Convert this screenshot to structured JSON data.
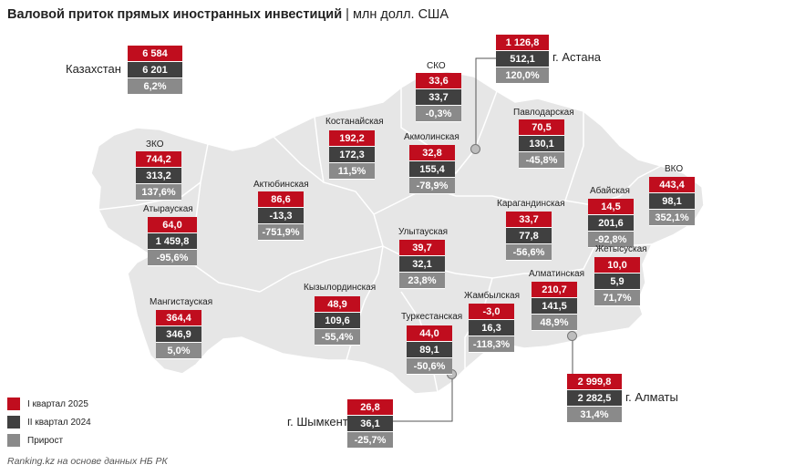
{
  "title": {
    "main": "Валовой приток прямых иностранных инвестиций",
    "sep": " | ",
    "unit": "млн долл. США"
  },
  "colors": {
    "q1_2025": "#c00d1e",
    "q2_2024": "#404040",
    "growth": "#8a8a8a"
  },
  "regions": {
    "kazakhstan": {
      "name": "Казахстан",
      "v1": "6 584",
      "v2": "6 201",
      "g": "6,2%"
    },
    "astana": {
      "name": "г. Астана",
      "v1": "1 126,8",
      "v2": "512,1",
      "g": "120,0%"
    },
    "sko": {
      "name": "СКО",
      "v1": "33,6",
      "v2": "33,7",
      "g": "-0,3%"
    },
    "pavlodar": {
      "name": "Павлодарская",
      "v1": "70,5",
      "v2": "130,1",
      "g": "-45,8%"
    },
    "kostanay": {
      "name": "Костанайская",
      "v1": "192,2",
      "v2": "172,3",
      "g": "11,5%"
    },
    "akmola": {
      "name": "Акмолинская",
      "v1": "32,8",
      "v2": "155,4",
      "g": "-78,9%"
    },
    "zko": {
      "name": "ЗКО",
      "v1": "744,2",
      "v2": "313,2",
      "g": "137,6%"
    },
    "aktobe": {
      "name": "Актюбинская",
      "v1": "86,6",
      "v2": "-13,3",
      "g": "-751,9%"
    },
    "vko": {
      "name": "ВКО",
      "v1": "443,4",
      "v2": "98,1",
      "g": "352,1%"
    },
    "abay": {
      "name": "Абайская",
      "v1": "14,5",
      "v2": "201,6",
      "g": "-92,8%"
    },
    "karaganda": {
      "name": "Карагандинская",
      "v1": "33,7",
      "v2": "77,8",
      "g": "-56,6%"
    },
    "atyrau": {
      "name": "Атырауская",
      "v1": "64,0",
      "v2": "1 459,8",
      "g": "-95,6%"
    },
    "ulytau": {
      "name": "Улытауская",
      "v1": "39,7",
      "v2": "32,1",
      "g": "23,8%"
    },
    "zhetysu": {
      "name": "Жетысуская",
      "v1": "10,0",
      "v2": "5,9",
      "g": "71,7%"
    },
    "almaty_reg": {
      "name": "Алматинская",
      "v1": "210,7",
      "v2": "141,5",
      "g": "48,9%"
    },
    "mangystau": {
      "name": "Мангистауская",
      "v1": "364,4",
      "v2": "346,9",
      "g": "5,0%"
    },
    "kyzylorda": {
      "name": "Кызылординская",
      "v1": "48,9",
      "v2": "109,6",
      "g": "-55,4%"
    },
    "zhambyl": {
      "name": "Жамбылская",
      "v1": "-3,0",
      "v2": "16,3",
      "g": "-118,3%"
    },
    "turkestan": {
      "name": "Туркестанская",
      "v1": "44,0",
      "v2": "89,1",
      "g": "-50,6%"
    },
    "almaty": {
      "name": "г. Алматы",
      "v1": "2 999,8",
      "v2": "2 282,5",
      "g": "31,4%"
    },
    "shymkent": {
      "name": "г. Шымкент",
      "v1": "26,8",
      "v2": "36,1",
      "g": "-25,7%"
    }
  },
  "legend": [
    "I квартал 2025",
    "II квартал 2024",
    "Прирост"
  ],
  "footer": "Ranking.kz на основе данных НБ РК"
}
